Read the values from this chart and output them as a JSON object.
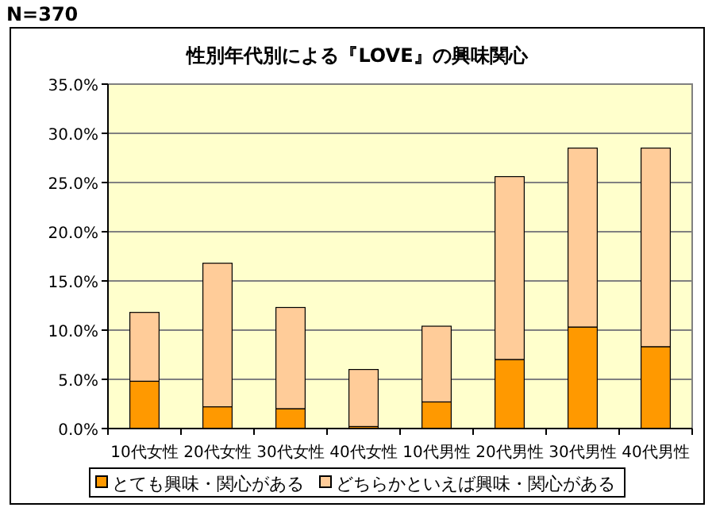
{
  "chart_data": {
    "type": "bar",
    "title": "性別年代別による『LOVE』の興味関心",
    "annotations": [
      "N=370"
    ],
    "categories": [
      "10代女性",
      "20代女性",
      "30代女性",
      "40代女性",
      "10代男性",
      "20代男性",
      "30代男性",
      "40代男性"
    ],
    "stacked": true,
    "series": [
      {
        "name": "とても興味・関心がある",
        "color": "#ff9900",
        "values": [
          4.8,
          2.2,
          2.0,
          0.2,
          2.7,
          7.0,
          10.3,
          8.3
        ]
      },
      {
        "name": "どちらかといえば興味・関心がある",
        "color": "#ffcc99",
        "values": [
          7.0,
          14.6,
          10.3,
          5.8,
          7.7,
          18.6,
          18.2,
          20.2
        ]
      }
    ],
    "ylim": [
      0,
      35
    ],
    "yticks": [
      {
        "value": 0,
        "label": "0.0%"
      },
      {
        "value": 5,
        "label": "5.0%"
      },
      {
        "value": 10,
        "label": "10.0%"
      },
      {
        "value": 15,
        "label": "15.0%"
      },
      {
        "value": 20,
        "label": "20.0%"
      },
      {
        "value": 25,
        "label": "25.0%"
      },
      {
        "value": 30,
        "label": "30.0%"
      },
      {
        "value": 35,
        "label": "35.0%"
      }
    ],
    "grid": "y",
    "legend": "bottom"
  }
}
